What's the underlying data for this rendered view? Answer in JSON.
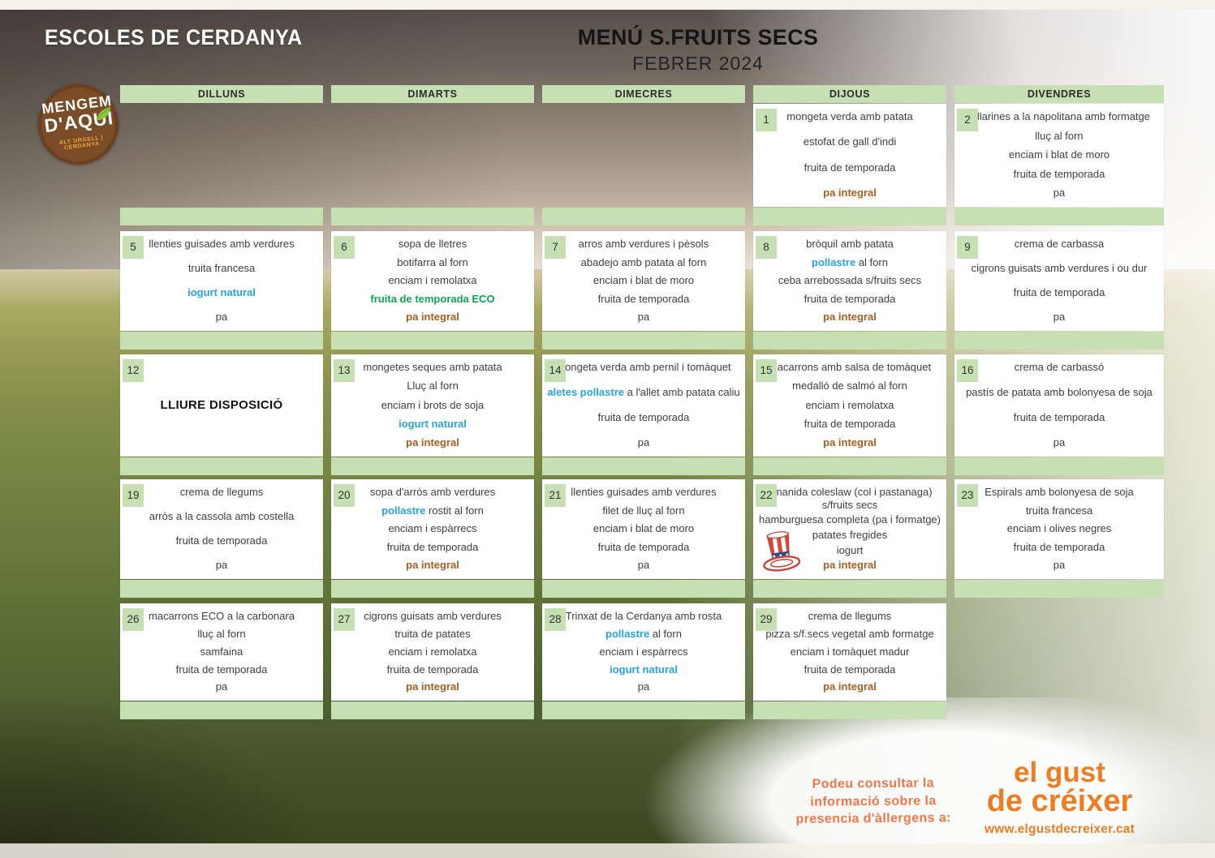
{
  "header": {
    "school": "ESCOLES DE CERDANYA",
    "title": "MENÚ S.FRUITS SECS",
    "subtitle": "FEBRER 2024"
  },
  "logo": {
    "line1": "MENGEM",
    "line2": "D'AQUI",
    "sub": "ALT URGELL | CERDANYA"
  },
  "days_of_week": [
    "DILLUNS",
    "DIMARTS",
    "DIMECRES",
    "DIJOUS",
    "DIVENDRES"
  ],
  "weeks": [
    {
      "strips": [
        true,
        true,
        true,
        true,
        true
      ],
      "days": [
        null,
        null,
        null,
        {
          "num": "1",
          "lines": [
            [
              {
                "t": "mongeta verda amb patata"
              }
            ],
            [
              {
                "t": "estofat de gall d'indi"
              }
            ],
            [
              {
                "t": "fruita de temporada"
              }
            ],
            [
              {
                "t": "pa integral",
                "s": "brown"
              }
            ]
          ]
        },
        {
          "num": "2",
          "lines": [
            [
              {
                "t": "tallarines a la napolitana amb formatge"
              }
            ],
            [
              {
                "t": "lluç al forn"
              }
            ],
            [
              {
                "t": "enciam i blat de moro"
              }
            ],
            [
              {
                "t": "fruita de temporada"
              }
            ],
            [
              {
                "t": "pa"
              }
            ]
          ]
        }
      ]
    },
    {
      "strips": [
        true,
        true,
        true,
        true,
        true
      ],
      "days": [
        {
          "num": "5",
          "lines": [
            [
              {
                "t": "llenties guisades amb verdures"
              }
            ],
            [
              {
                "t": "truita francesa"
              }
            ],
            [
              {
                "t": "iogurt natural",
                "s": "blue"
              }
            ],
            [
              {
                "t": "pa"
              }
            ]
          ]
        },
        {
          "num": "6",
          "lines": [
            [
              {
                "t": "sopa de lletres"
              }
            ],
            [
              {
                "t": "botifarra al forn"
              }
            ],
            [
              {
                "t": "enciam i remolatxa"
              }
            ],
            [
              {
                "t": "fruita de temporada ECO",
                "s": "green"
              }
            ],
            [
              {
                "t": "pa integral",
                "s": "brown"
              }
            ]
          ]
        },
        {
          "num": "7",
          "lines": [
            [
              {
                "t": "arros amb verdures i pèsols"
              }
            ],
            [
              {
                "t": "abadejo amb patata al forn"
              }
            ],
            [
              {
                "t": "enciam i blat de moro"
              }
            ],
            [
              {
                "t": "fruita de temporada"
              }
            ],
            [
              {
                "t": "pa"
              }
            ]
          ]
        },
        {
          "num": "8",
          "lines": [
            [
              {
                "t": "bròquil amb patata"
              }
            ],
            [
              {
                "t": "pollastre",
                "s": "blue"
              },
              {
                "t": " al forn"
              }
            ],
            [
              {
                "t": "ceba arrebossada s/fruits secs"
              }
            ],
            [
              {
                "t": "fruita de temporada"
              }
            ],
            [
              {
                "t": "pa integral",
                "s": "brown"
              }
            ]
          ]
        },
        {
          "num": "9",
          "lines": [
            [
              {
                "t": "crema de carbassa"
              }
            ],
            [
              {
                "t": "cigrons guisats amb verdures i ou dur"
              }
            ],
            [
              {
                "t": "fruita de temporada"
              }
            ],
            [
              {
                "t": "pa"
              }
            ]
          ]
        }
      ]
    },
    {
      "strips": [
        true,
        true,
        true,
        true,
        true
      ],
      "days": [
        {
          "num": "12",
          "center": true,
          "lines": [
            [
              {
                "t": "LLIURE DISPOSICIÓ",
                "s": "black-bold"
              }
            ]
          ]
        },
        {
          "num": "13",
          "lines": [
            [
              {
                "t": "mongetes seques amb patata"
              }
            ],
            [
              {
                "t": "Lluç al forn"
              }
            ],
            [
              {
                "t": "enciam i brots de soja"
              }
            ],
            [
              {
                "t": "iogurt natural",
                "s": "blue"
              }
            ],
            [
              {
                "t": "pa integral",
                "s": "brown"
              }
            ]
          ]
        },
        {
          "num": "14",
          "lines": [
            [
              {
                "t": "mongeta verda amb pernil i tomàquet"
              }
            ],
            [
              {
                "t": "aletes pollastre",
                "s": "blue"
              },
              {
                "t": " a l'allet amb patata caliu"
              }
            ],
            [
              {
                "t": "fruita de temporada"
              }
            ],
            [
              {
                "t": "pa"
              }
            ]
          ]
        },
        {
          "num": "15",
          "lines": [
            [
              {
                "t": "macarrons amb salsa de tomàquet"
              }
            ],
            [
              {
                "t": "medalló de salmó al forn"
              }
            ],
            [
              {
                "t": "enciam i remolatxa"
              }
            ],
            [
              {
                "t": "fruita de temporada"
              }
            ],
            [
              {
                "t": "pa integral",
                "s": "brown"
              }
            ]
          ]
        },
        {
          "num": "16",
          "lines": [
            [
              {
                "t": "crema de carbassó"
              }
            ],
            [
              {
                "t": "pastís de patata amb bolonyesa de soja"
              }
            ],
            [
              {
                "t": "fruita de temporada"
              }
            ],
            [
              {
                "t": "pa"
              }
            ]
          ]
        }
      ]
    },
    {
      "strips": [
        true,
        true,
        true,
        true,
        true
      ],
      "days": [
        {
          "num": "19",
          "lines": [
            [
              {
                "t": "crema de llegums"
              }
            ],
            [
              {
                "t": "arròs a la cassola amb costella"
              }
            ],
            [
              {
                "t": "fruita de temporada"
              }
            ],
            [
              {
                "t": "pa"
              }
            ]
          ]
        },
        {
          "num": "20",
          "lines": [
            [
              {
                "t": "sopa d'arròs amb verdures"
              }
            ],
            [
              {
                "t": "pollastre",
                "s": "blue"
              },
              {
                "t": " rostit al forn"
              }
            ],
            [
              {
                "t": "enciam i espàrrecs"
              }
            ],
            [
              {
                "t": "fruita de temporada"
              }
            ],
            [
              {
                "t": "pa integral",
                "s": "brown"
              }
            ]
          ]
        },
        {
          "num": "21",
          "lines": [
            [
              {
                "t": "llenties guisades amb verdures"
              }
            ],
            [
              {
                "t": "filet de lluç al forn"
              }
            ],
            [
              {
                "t": "enciam i blat de moro"
              }
            ],
            [
              {
                "t": "fruita de temporada"
              }
            ],
            [
              {
                "t": "pa"
              }
            ]
          ]
        },
        {
          "num": "22",
          "icon": "striped-hat",
          "lines": [
            [
              {
                "t": "amanida coleslaw (col i pastanaga) s/fruits secs"
              }
            ],
            [
              {
                "t": "hamburguesa completa (pa i formatge)"
              }
            ],
            [
              {
                "t": "patates fregides"
              }
            ],
            [
              {
                "t": "iogurt"
              }
            ],
            [
              {
                "t": "pa integral",
                "s": "brown"
              }
            ]
          ]
        },
        {
          "num": "23",
          "lines": [
            [
              {
                "t": "Espirals amb bolonyesa de soja"
              }
            ],
            [
              {
                "t": "truita francesa"
              }
            ],
            [
              {
                "t": "enciam i olives negres"
              }
            ],
            [
              {
                "t": "fruita de temporada"
              }
            ],
            [
              {
                "t": "pa"
              }
            ]
          ]
        }
      ]
    },
    {
      "strips": [
        true,
        true,
        true,
        true,
        false
      ],
      "days": [
        {
          "num": "26",
          "lines": [
            [
              {
                "t": "macarrons ECO a la carbonara"
              }
            ],
            [
              {
                "t": "lluç al forn"
              }
            ],
            [
              {
                "t": "samfaina"
              }
            ],
            [
              {
                "t": "fruita de temporada"
              }
            ],
            [
              {
                "t": "pa"
              }
            ]
          ]
        },
        {
          "num": "27",
          "lines": [
            [
              {
                "t": "cigrons guisats amb verdures"
              }
            ],
            [
              {
                "t": "truita de patates"
              }
            ],
            [
              {
                "t": "enciam i remolatxa"
              }
            ],
            [
              {
                "t": "fruita de temporada"
              }
            ],
            [
              {
                "t": "pa integral",
                "s": "brown"
              }
            ]
          ]
        },
        {
          "num": "28",
          "lines": [
            [
              {
                "t": "Trinxat de la Cerdanya amb rosta"
              }
            ],
            [
              {
                "t": "pollastre",
                "s": "blue"
              },
              {
                "t": " al forn"
              }
            ],
            [
              {
                "t": "enciam i espàrrecs"
              }
            ],
            [
              {
                "t": "iogurt natural",
                "s": "blue"
              }
            ],
            [
              {
                "t": "pa"
              }
            ]
          ]
        },
        {
          "num": "29",
          "lines": [
            [
              {
                "t": "crema de llegums"
              }
            ],
            [
              {
                "t": "pizza s/f.secs vegetal amb formatge"
              }
            ],
            [
              {
                "t": "enciam i tomàquet madur"
              }
            ],
            [
              {
                "t": "fruita de temporada"
              }
            ],
            [
              {
                "t": "pa integral",
                "s": "brown"
              }
            ]
          ]
        },
        null
      ]
    }
  ],
  "footer": {
    "note": "Podeu consultar la informació sobre la presencia d'àllergens a:",
    "brand1": "el gust",
    "brand2": "de créixer",
    "site": "www.elgustdecreixer.cat"
  },
  "colors": {
    "cell_green": "#c6e0b4",
    "accent_blue": "#29a3dc",
    "accent_green": "#12a157",
    "accent_brown": "#a65e21",
    "footer_orange": "#f1764b",
    "brand_orange": "#ee7c22"
  }
}
